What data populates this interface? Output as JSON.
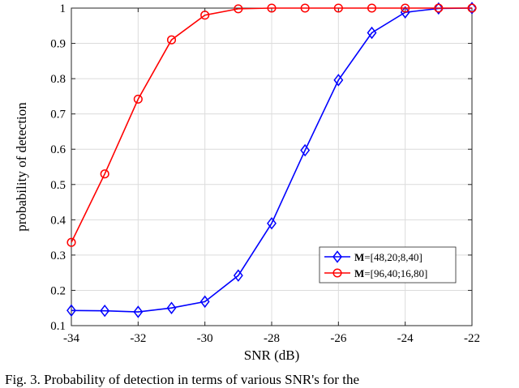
{
  "chart_data": {
    "type": "line",
    "title": "",
    "xlabel": "SNR (dB)",
    "ylabel": "probability of detection",
    "xlim": [
      -34,
      -22
    ],
    "ylim": [
      0.1,
      1
    ],
    "xticks": [
      -34,
      -32,
      -30,
      -28,
      -26,
      -24,
      -22
    ],
    "yticks": [
      0.1,
      0.2,
      0.3,
      0.4,
      0.5,
      0.6,
      0.7,
      0.8,
      0.9,
      1
    ],
    "grid": true,
    "legend_position": "lower-right",
    "x": [
      -34,
      -33,
      -32,
      -31,
      -30,
      -29,
      -28,
      -27,
      -26,
      -25,
      -24,
      -23,
      -22
    ],
    "series": [
      {
        "name_bold": "M",
        "name_rest": "=[48,20;8,40]",
        "marker": "diamond",
        "color": "#0000ff",
        "values": [
          0.143,
          0.142,
          0.139,
          0.15,
          0.168,
          0.242,
          0.39,
          0.597,
          0.796,
          0.93,
          0.988,
          0.999,
          1.0
        ]
      },
      {
        "name_bold": "M",
        "name_rest": "=[96,40;16,80]",
        "marker": "circle",
        "color": "#ff0000",
        "values": [
          0.336,
          0.53,
          0.742,
          0.91,
          0.98,
          0.998,
          1.0,
          1.0,
          1.0,
          1.0,
          1.0,
          1.0,
          1.0
        ]
      }
    ]
  },
  "caption": "Fig. 3. Probability of detection in terms of various SNR's for the"
}
